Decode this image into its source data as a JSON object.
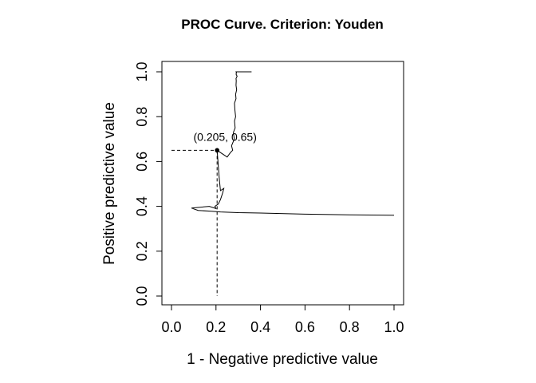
{
  "chart_data": {
    "type": "line",
    "title": "PROC Curve. Criterion: Youden",
    "xlabel": "1 - Negative predictive value",
    "ylabel": "Positive predictive value",
    "xlim": [
      0,
      1
    ],
    "ylim": [
      0,
      1
    ],
    "xticks": [
      "0.0",
      "0.2",
      "0.4",
      "0.6",
      "0.8",
      "1.0"
    ],
    "yticks": [
      "0.0",
      "0.2",
      "0.4",
      "0.6",
      "0.8",
      "1.0"
    ],
    "grid": false,
    "legend": "none",
    "line_color": "#000000",
    "series": [
      {
        "x": [
          1.0,
          0.8,
          0.6,
          0.4,
          0.3,
          0.22,
          0.18,
          0.12,
          0.09,
          0.17,
          0.2,
          0.195,
          0.21,
          0.22,
          0.23,
          0.235,
          0.22,
          0.215,
          0.205,
          0.22,
          0.25,
          0.265,
          0.275,
          0.27,
          0.282,
          0.278,
          0.286,
          0.283,
          0.288,
          0.285,
          0.283,
          0.29,
          0.288,
          0.293,
          0.29,
          0.291,
          0.29,
          0.295,
          0.29,
          0.292,
          0.29,
          0.36
        ],
        "y": [
          0.36,
          0.362,
          0.365,
          0.37,
          0.372,
          0.375,
          0.378,
          0.382,
          0.392,
          0.4,
          0.39,
          0.4,
          0.41,
          0.43,
          0.46,
          0.48,
          0.47,
          0.52,
          0.65,
          0.64,
          0.62,
          0.64,
          0.65,
          0.67,
          0.7,
          0.73,
          0.75,
          0.78,
          0.8,
          0.83,
          0.86,
          0.88,
          0.9,
          0.92,
          0.94,
          0.96,
          0.97,
          0.98,
          0.99,
          0.995,
          1.0,
          1.0
        ]
      }
    ],
    "optimal_point": {
      "x": 0.205,
      "y": 0.65,
      "label": "(0.205, 0.65)"
    }
  }
}
